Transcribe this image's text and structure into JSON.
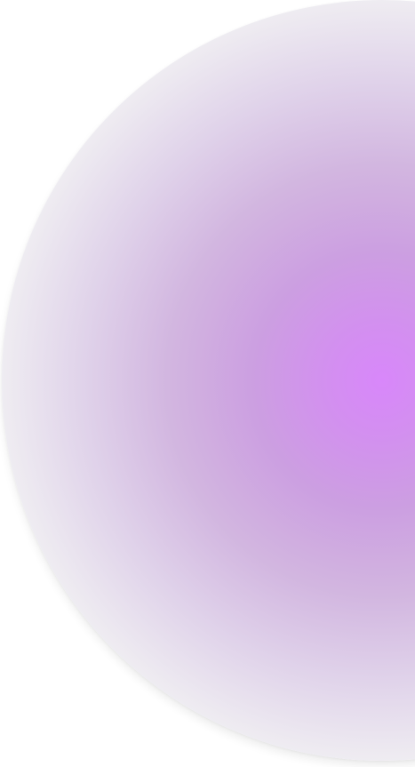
{
  "scene": {
    "description_shown": "",
    "colors": {
      "background": "#ffffff",
      "orb_center": "#d887fa",
      "orb_mid": "#cc9fe1",
      "orb_edge": "#ffffff"
    }
  }
}
